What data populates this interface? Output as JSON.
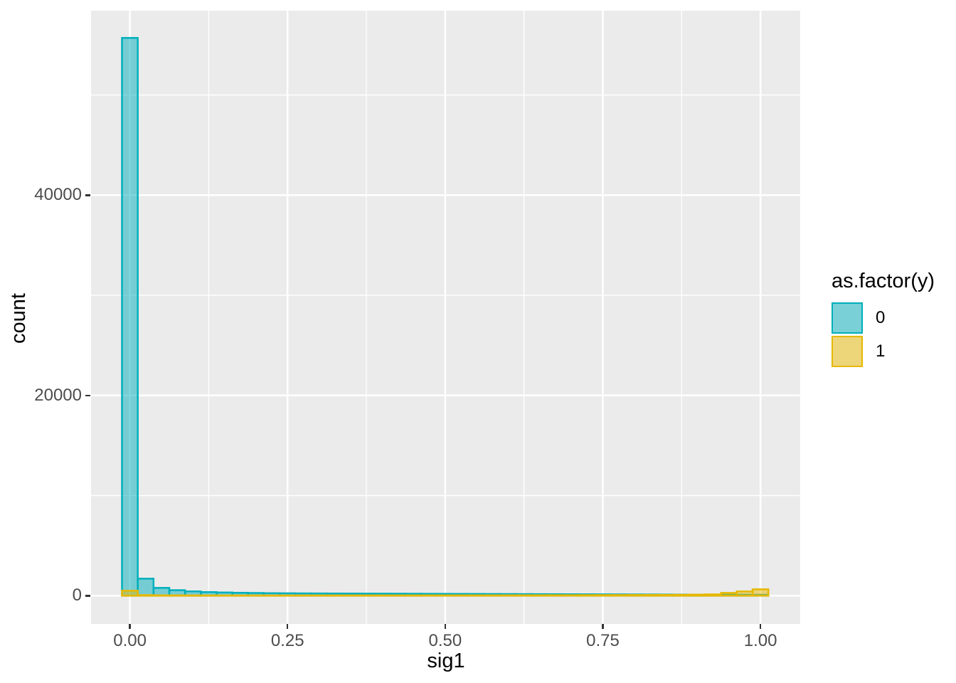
{
  "chart_data": {
    "type": "bar",
    "subtype": "overlaid-histogram",
    "title": "",
    "xlabel": "sig1",
    "ylabel": "count",
    "legend_title": "as.factor(y)",
    "legend_position": "right",
    "grid": true,
    "panel_background": "#EBEBEB",
    "grid_color": "#FFFFFF",
    "axis_text_color": "#4D4D4D",
    "axis_title_color": "#000000",
    "binwidth": 0.025,
    "xlim": [
      -0.064,
      1.064
    ],
    "ylim": [
      -2800,
      58500
    ],
    "x_ticks": [
      {
        "value": 0,
        "label": "0.00"
      },
      {
        "value": 0.25,
        "label": "0.25"
      },
      {
        "value": 0.5,
        "label": "0.50"
      },
      {
        "value": 0.75,
        "label": "0.75"
      },
      {
        "value": 1.0,
        "label": "1.00"
      }
    ],
    "y_ticks": [
      {
        "value": 0,
        "label": "0"
      },
      {
        "value": 20000,
        "label": "20000"
      },
      {
        "value": 40000,
        "label": "40000"
      }
    ],
    "x_minor_ticks": [
      0.125,
      0.375,
      0.625,
      0.875
    ],
    "y_minor_ticks": [
      10000,
      30000,
      50000
    ],
    "bin_centers": [
      0,
      0.025,
      0.05,
      0.075,
      0.1,
      0.125,
      0.15,
      0.175,
      0.2,
      0.225,
      0.25,
      0.275,
      0.3,
      0.325,
      0.35,
      0.375,
      0.4,
      0.425,
      0.45,
      0.475,
      0.5,
      0.525,
      0.55,
      0.575,
      0.6,
      0.625,
      0.65,
      0.675,
      0.7,
      0.725,
      0.75,
      0.775,
      0.8,
      0.825,
      0.85,
      0.875,
      0.9,
      0.925,
      0.95,
      0.975,
      1.0
    ],
    "series": [
      {
        "name": "0",
        "color": "#00AFBB",
        "fill_opacity": 0.5,
        "values": [
          55700,
          1700,
          780,
          550,
          430,
          360,
          320,
          290,
          270,
          250,
          240,
          230,
          225,
          220,
          215,
          210,
          205,
          200,
          195,
          190,
          185,
          180,
          175,
          170,
          165,
          160,
          155,
          150,
          145,
          140,
          135,
          130,
          125,
          120,
          115,
          110,
          105,
          100,
          95,
          90,
          85
        ]
      },
      {
        "name": "1",
        "color": "#E7B800",
        "fill_opacity": 0.5,
        "values": [
          500,
          60,
          40,
          35,
          30,
          28,
          27,
          26,
          25,
          25,
          25,
          26,
          27,
          28,
          29,
          30,
          31,
          32,
          33,
          34,
          35,
          36,
          38,
          40,
          42,
          44,
          46,
          48,
          50,
          55,
          60,
          65,
          70,
          75,
          80,
          90,
          105,
          130,
          280,
          430,
          640
        ]
      }
    ]
  }
}
